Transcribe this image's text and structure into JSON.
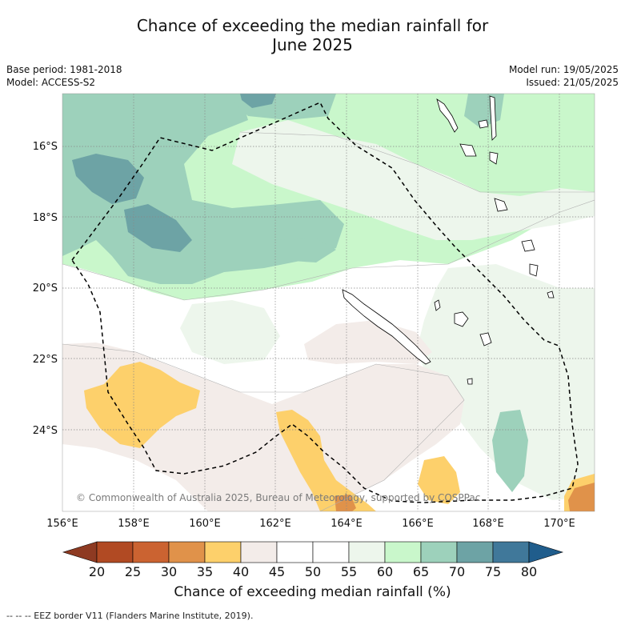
{
  "title_line1": "Chance of exceeding the median rainfall for",
  "title_line2": "June 2025",
  "meta_left": [
    "Base period: 1981-2018",
    "Model: ACCESS-S2"
  ],
  "meta_right": [
    "Model run: 19/05/2025",
    "Issued: 21/05/2025"
  ],
  "x_ticks": [
    "156°E",
    "158°E",
    "160°E",
    "162°E",
    "164°E",
    "166°E",
    "168°E",
    "170°E"
  ],
  "y_ticks": [
    "16°S",
    "18°S",
    "20°S",
    "22°S",
    "24°S"
  ],
  "copyright": "© Commonwealth of Australia 2025, Bureau of Meteorology, supported by COSPPac",
  "colorbar": {
    "label": "Chance of exceeding median rainfall (%)",
    "ticks": [
      "20",
      "25",
      "30",
      "35",
      "40",
      "45",
      "50",
      "55",
      "60",
      "65",
      "70",
      "75",
      "80"
    ],
    "colors": [
      "#8e3a22",
      "#b14a23",
      "#cb6331",
      "#e0924a",
      "#fdd06b",
      "#f3ece9",
      "#ffffff",
      "#ffffff",
      "#edf6ec",
      "#c9f7cb",
      "#9dd1bb",
      "#6da3a5",
      "#40789a",
      "#205d8c"
    ]
  },
  "legend_note": "--  --  -- EEZ border V11 (Flanders Marine Institute, 2019)."
}
